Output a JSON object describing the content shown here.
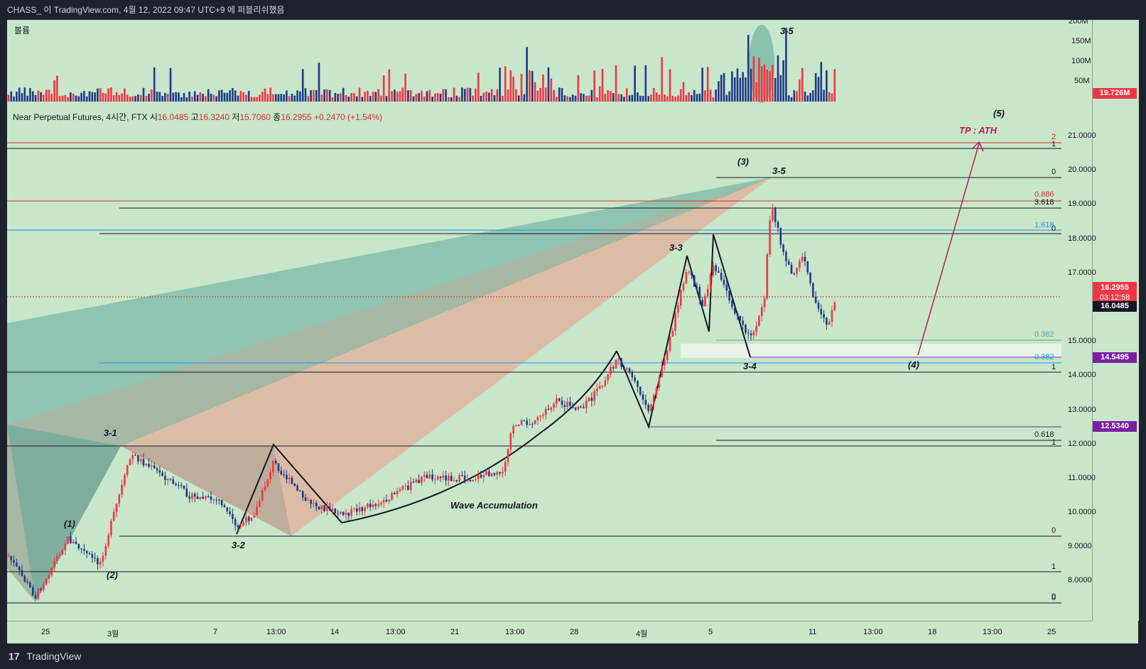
{
  "topbar": {
    "text": "CHASS_ 이 TradingView.com, 4월 12, 2022 09:47 UTC+9 에 퍼블리쉬했음"
  },
  "volume": {
    "title": "볼륨",
    "axis": [
      "200M",
      "150M",
      "100M",
      "50M"
    ],
    "last_value": "19.726M"
  },
  "legend": {
    "symbol": "Near Perpetual Futures, 4시간, FTX",
    "open_label": "시",
    "open": "16.0485",
    "high_label": "고",
    "high": "16.3240",
    "low_label": "저",
    "low": "15.7060",
    "close_label": "종",
    "close": "16.2955",
    "change": "+0.2470 (+1.54%)"
  },
  "price_axis": [
    "21.0000",
    "20.0000",
    "19.0000",
    "18.0000",
    "17.0000",
    "15.0000",
    "14.0000",
    "13.0000",
    "12.0000",
    "11.0000",
    "10.0000",
    "9.0000",
    "8.0000"
  ],
  "price_tags": {
    "current": "16.2955",
    "countdown": "03:12:58",
    "open": "16.0485",
    "level_1": "14.5495",
    "level_2": "12.5340"
  },
  "time_axis": [
    "25",
    "3월",
    "7",
    "13:00",
    "14",
    "13:00",
    "21",
    "13:00",
    "28",
    "4월",
    "5",
    "11",
    "13:00",
    "18",
    "13:00",
    "25"
  ],
  "fib_labels": {
    "two": "2",
    "one_top": "1",
    "zero_top": "0",
    "f0886": "0.886",
    "f3618": "3.618",
    "f1618": "1.618",
    "zero_2": "0",
    "f0382a": "0.382",
    "f0382b": "0.382",
    "one_mid": "1",
    "f0618": "0.618",
    "one_low": "1",
    "zero_low": "0",
    "one_bottom": "1",
    "zero_bottom": "0",
    "zero_last": "0"
  },
  "annotations": {
    "w1": "(1)",
    "w2": "(2)",
    "w3": "(3)",
    "w4": "(4)",
    "w5": "(5)",
    "s31": "3-1",
    "s32": "3-2",
    "s33": "3-3",
    "s34": "3-4",
    "s35": "3-5",
    "s35v": "3-5",
    "tp": "TP : ATH",
    "accum": "Wave Accumulation"
  },
  "footer": {
    "logo": "17",
    "brand": "TradingView"
  },
  "colors": {
    "up": "#f23645",
    "down": "#1e3a8a",
    "fib_red": "#d32f2f",
    "fib_blue": "#2196f3",
    "purple": "#7b1fa2",
    "teal": "#5fa89a",
    "salmon": "#e8a290",
    "bg": "#c8e6c9"
  }
}
